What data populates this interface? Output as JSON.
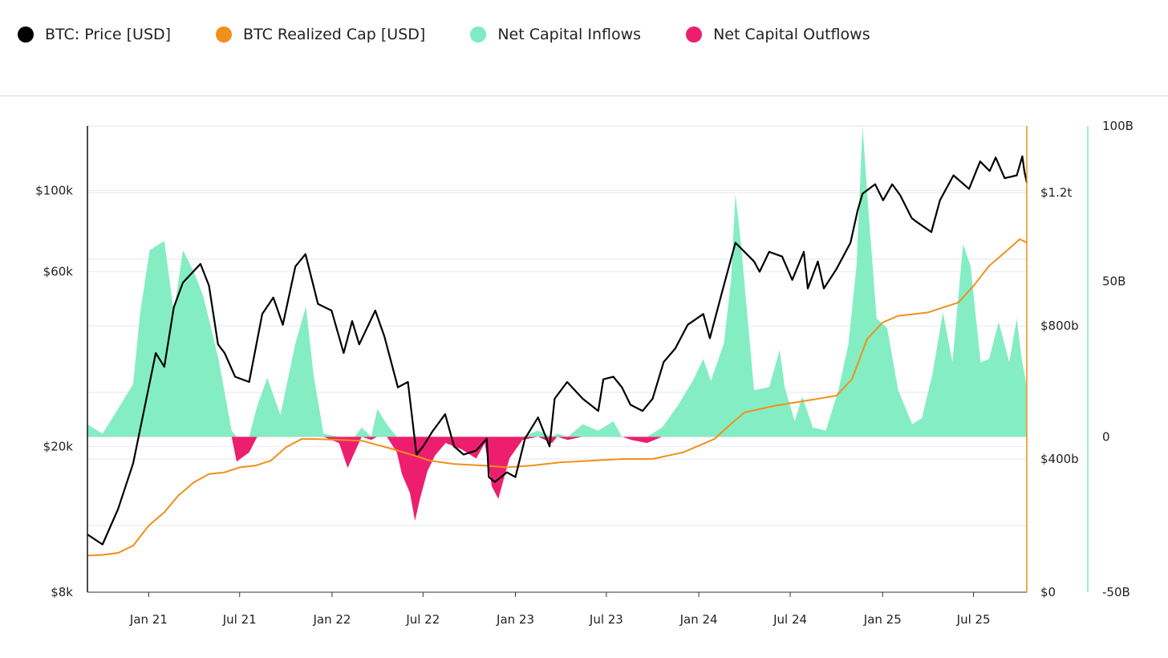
{
  "legend": [
    {
      "label": "BTC: Price [USD]",
      "color": "#000000"
    },
    {
      "label": "BTC Realized Cap [USD]",
      "color": "#f0901a"
    },
    {
      "label": "Net Capital Inflows",
      "color": "#7eecc0"
    },
    {
      "label": "Net Capital Outflows",
      "color": "#ee1e6e"
    }
  ],
  "chart_data": {
    "type": "line",
    "x_range": [
      "2020-09-01",
      "2025-10-15"
    ],
    "x_ticks": [
      "Jan 21",
      "Jul 21",
      "Jan 22",
      "Jul 22",
      "Jan 23",
      "Jul 23",
      "Jan 24",
      "Jul 24",
      "Jan 25",
      "Jul 25"
    ],
    "y_left": {
      "scale": "log",
      "range": [
        8000,
        150000
      ],
      "ticks": [
        "$8k",
        "$20k",
        "$60k",
        "$100k"
      ],
      "tick_values": [
        8000,
        20000,
        60000,
        100000
      ]
    },
    "y_right_1": {
      "range": [
        0,
        1400000000000
      ],
      "ticks": [
        "$0",
        "$400b",
        "$800b",
        "$1.2t"
      ],
      "tick_values": [
        0,
        400000000000,
        800000000000,
        1200000000000
      ]
    },
    "y_right_2": {
      "range": [
        -50000000000,
        100000000000
      ],
      "ticks": [
        "-50B",
        "0",
        "50B",
        "100B"
      ],
      "tick_values": [
        -50000000000,
        0,
        50000000000,
        100000000000
      ]
    },
    "series": [
      {
        "name": "BTC: Price [USD]",
        "axis": "left",
        "color": "#000000",
        "x": [
          "2020-09-01",
          "2020-10-01",
          "2020-11-01",
          "2020-12-01",
          "2021-01-01",
          "2021-01-15",
          "2021-02-01",
          "2021-02-20",
          "2021-03-10",
          "2021-04-14",
          "2021-05-01",
          "2021-05-19",
          "2021-06-01",
          "2021-06-22",
          "2021-07-20",
          "2021-08-15",
          "2021-09-06",
          "2021-09-25",
          "2021-10-20",
          "2021-11-09",
          "2021-12-04",
          "2021-12-31",
          "2022-01-24",
          "2022-02-10",
          "2022-02-24",
          "2022-03-28",
          "2022-04-15",
          "2022-05-12",
          "2022-06-01",
          "2022-06-18",
          "2022-07-01",
          "2022-07-20",
          "2022-08-14",
          "2022-09-01",
          "2022-09-20",
          "2022-10-15",
          "2022-11-05",
          "2022-11-09",
          "2022-11-21",
          "2022-12-15",
          "2023-01-01",
          "2023-01-20",
          "2023-02-15",
          "2023-03-10",
          "2023-03-20",
          "2023-04-14",
          "2023-05-15",
          "2023-06-15",
          "2023-06-25",
          "2023-07-15",
          "2023-08-01",
          "2023-08-18",
          "2023-09-11",
          "2023-10-01",
          "2023-10-23",
          "2023-11-15",
          "2023-12-10",
          "2024-01-10",
          "2024-01-23",
          "2024-02-15",
          "2024-03-01",
          "2024-03-14",
          "2024-04-01",
          "2024-04-20",
          "2024-05-01",
          "2024-05-20",
          "2024-06-15",
          "2024-07-05",
          "2024-07-28",
          "2024-08-05",
          "2024-08-25",
          "2024-09-06",
          "2024-10-01",
          "2024-10-29",
          "2024-11-12",
          "2024-11-22",
          "2024-12-17",
          "2025-01-02",
          "2025-01-20",
          "2025-02-05",
          "2025-02-28",
          "2025-03-10",
          "2025-04-08",
          "2025-04-25",
          "2025-05-22",
          "2025-06-22",
          "2025-07-14",
          "2025-08-02",
          "2025-08-14",
          "2025-09-01",
          "2025-09-25",
          "2025-10-06",
          "2025-10-10",
          "2025-10-15"
        ],
        "y": [
          11500,
          10800,
          13500,
          18000,
          29000,
          36000,
          33000,
          48000,
          56000,
          63000,
          55000,
          38000,
          36000,
          31000,
          30000,
          46000,
          51000,
          43000,
          62000,
          67000,
          49000,
          47000,
          36000,
          44000,
          38000,
          47000,
          40000,
          29000,
          30000,
          19000,
          20000,
          22000,
          24500,
          20000,
          19000,
          19500,
          21000,
          16500,
          16000,
          17000,
          16500,
          21000,
          24000,
          20000,
          27000,
          30000,
          27000,
          25000,
          30500,
          31000,
          29000,
          26000,
          25000,
          27000,
          34000,
          37000,
          43000,
          46000,
          39500,
          52000,
          62000,
          72000,
          68000,
          64000,
          60000,
          68000,
          66000,
          57000,
          68000,
          54000,
          64000,
          54000,
          61000,
          72000,
          88000,
          98000,
          104000,
          94000,
          104000,
          97000,
          84000,
          82000,
          77000,
          94000,
          110000,
          101000,
          120000,
          113000,
          123000,
          108000,
          110000,
          124000,
          113000,
          105000
        ],
        "values": [
          11500,
          10800,
          13500,
          18000,
          29000,
          36000,
          33000,
          48000,
          56000,
          63000,
          55000,
          38000,
          36000,
          31000,
          30000,
          46000,
          51000,
          43000,
          62000,
          67000,
          49000,
          47000,
          36000,
          44000,
          38000,
          47000,
          40000,
          29000,
          30000,
          19000,
          20000,
          22000,
          24500,
          20000,
          19000,
          19500,
          21000,
          16500,
          16000,
          17000,
          16500,
          21000,
          24000,
          20000,
          27000,
          30000,
          27000,
          25000,
          30500,
          31000,
          29000,
          26000,
          25000,
          27000,
          34000,
          37000,
          43000,
          46000,
          39500,
          52000,
          62000,
          72000,
          68000,
          64000,
          60000,
          68000,
          66000,
          57000,
          68000,
          54000,
          64000,
          54000,
          61000,
          72000,
          88000,
          98000,
          104000,
          94000,
          104000,
          97000,
          84000,
          82000,
          77000,
          94000,
          110000,
          101000,
          120000,
          113000,
          123000,
          108000,
          110000,
          124000,
          113000,
          105000
        ]
      },
      {
        "name": "BTC Realized Cap [USD]",
        "axis": "right_1",
        "color": "#f0901a",
        "x": [
          "2020-09-01",
          "2020-10-01",
          "2020-11-01",
          "2020-12-01",
          "2021-01-01",
          "2021-02-01",
          "2021-03-01",
          "2021-04-01",
          "2021-05-01",
          "2021-06-01",
          "2021-07-01",
          "2021-08-01",
          "2021-09-01",
          "2021-10-01",
          "2021-11-01",
          "2021-12-01",
          "2022-01-01",
          "2022-03-01",
          "2022-05-01",
          "2022-06-15",
          "2022-07-15",
          "2022-09-01",
          "2022-11-01",
          "2022-12-15",
          "2023-02-01",
          "2023-04-01",
          "2023-06-01",
          "2023-08-01",
          "2023-10-01",
          "2023-12-01",
          "2024-01-01",
          "2024-02-01",
          "2024-03-01",
          "2024-04-01",
          "2024-06-01",
          "2024-08-01",
          "2024-10-01",
          "2024-11-01",
          "2024-12-01",
          "2025-01-01",
          "2025-02-01",
          "2025-04-01",
          "2025-06-01",
          "2025-07-01",
          "2025-08-01",
          "2025-09-01",
          "2025-10-01",
          "2025-10-15"
        ],
        "y": [
          110000000000,
          112000000000,
          118000000000,
          140000000000,
          200000000000,
          240000000000,
          290000000000,
          330000000000,
          355000000000,
          360000000000,
          375000000000,
          380000000000,
          395000000000,
          435000000000,
          460000000000,
          460000000000,
          458000000000,
          455000000000,
          430000000000,
          410000000000,
          395000000000,
          385000000000,
          380000000000,
          375000000000,
          380000000000,
          390000000000,
          395000000000,
          400000000000,
          400000000000,
          420000000000,
          440000000000,
          460000000000,
          500000000000,
          540000000000,
          560000000000,
          575000000000,
          590000000000,
          640000000000,
          760000000000,
          810000000000,
          830000000000,
          840000000000,
          870000000000,
          920000000000,
          980000000000,
          1020000000000,
          1060000000000,
          1050000000000
        ],
        "values": [
          110000000000,
          112000000000,
          118000000000,
          140000000000,
          200000000000,
          240000000000,
          290000000000,
          330000000000,
          355000000000,
          360000000000,
          375000000000,
          380000000000,
          395000000000,
          435000000000,
          460000000000,
          460000000000,
          458000000000,
          455000000000,
          430000000000,
          410000000000,
          395000000000,
          385000000000,
          380000000000,
          375000000000,
          380000000000,
          390000000000,
          395000000000,
          400000000000,
          400000000000,
          420000000000,
          440000000000,
          460000000000,
          500000000000,
          540000000000,
          560000000000,
          575000000000,
          590000000000,
          640000000000,
          760000000000,
          810000000000,
          830000000000,
          840000000000,
          870000000000,
          920000000000,
          980000000000,
          1020000000000,
          1060000000000,
          1050000000000
        ]
      },
      {
        "name": "Net Capital Inflows / Outflows",
        "axis": "right_2",
        "type": "area",
        "x": [
          "2020-09-01",
          "2020-10-01",
          "2020-11-01",
          "2020-12-01",
          "2020-12-15",
          "2021-01-03",
          "2021-02-01",
          "2021-02-20",
          "2021-03-10",
          "2021-04-01",
          "2021-04-20",
          "2021-05-20",
          "2021-06-15",
          "2021-06-25",
          "2021-07-20",
          "2021-08-05",
          "2021-08-25",
          "2021-09-20",
          "2021-10-20",
          "2021-11-10",
          "2021-11-25",
          "2021-12-15",
          "2022-01-15",
          "2022-02-01",
          "2022-02-15",
          "2022-03-01",
          "2022-03-20",
          "2022-04-01",
          "2022-04-20",
          "2022-05-10",
          "2022-05-20",
          "2022-06-05",
          "2022-06-15",
          "2022-06-25",
          "2022-07-10",
          "2022-07-25",
          "2022-08-15",
          "2022-09-15",
          "2022-10-15",
          "2022-11-01",
          "2022-11-15",
          "2022-11-28",
          "2022-12-20",
          "2023-01-15",
          "2023-02-15",
          "2023-03-15",
          "2023-03-25",
          "2023-04-15",
          "2023-05-15",
          "2023-06-15",
          "2023-07-15",
          "2023-08-01",
          "2023-08-20",
          "2023-09-20",
          "2023-10-20",
          "2023-11-20",
          "2023-12-20",
          "2024-01-10",
          "2024-01-25",
          "2024-02-20",
          "2024-03-05",
          "2024-03-14",
          "2024-03-25",
          "2024-04-20",
          "2024-05-20",
          "2024-06-10",
          "2024-06-20",
          "2024-07-10",
          "2024-07-25",
          "2024-08-15",
          "2024-09-10",
          "2024-10-05",
          "2024-10-25",
          "2024-11-10",
          "2024-11-22",
          "2024-12-05",
          "2024-12-20",
          "2025-01-10",
          "2025-02-01",
          "2025-03-01",
          "2025-03-20",
          "2025-04-10",
          "2025-05-01",
          "2025-05-20",
          "2025-06-10",
          "2025-06-25",
          "2025-07-15",
          "2025-08-01",
          "2025-08-20",
          "2025-09-10",
          "2025-09-25",
          "2025-10-05",
          "2025-10-15"
        ],
        "y": [
          4000000000,
          1000000000,
          9000000000,
          17000000000,
          40000000000,
          60000000000,
          63000000000,
          40000000000,
          60000000000,
          53000000000,
          45000000000,
          25000000000,
          2000000000,
          -8000000000,
          -5000000000,
          10000000000,
          19000000000,
          7000000000,
          30000000000,
          42000000000,
          20000000000,
          1000000000,
          -2000000000,
          -10000000000,
          -5000000000,
          3000000000,
          -1000000000,
          9000000000,
          4000000000,
          -5000000000,
          -12000000000,
          -18000000000,
          -27000000000,
          -20000000000,
          -11000000000,
          -6000000000,
          -2000000000,
          -4000000000,
          -7000000000,
          -2000000000,
          -16000000000,
          -20000000000,
          -7000000000,
          -1000000000,
          2000000000,
          -2000000000,
          1000000000,
          -1000000000,
          4000000000,
          2000000000,
          5000000000,
          0,
          -1000000000,
          -2000000000,
          3000000000,
          10000000000,
          18000000000,
          25000000000,
          18000000000,
          30000000000,
          50000000000,
          78000000000,
          62000000000,
          15000000000,
          16000000000,
          28000000000,
          16000000000,
          5000000000,
          13000000000,
          3000000000,
          2000000000,
          15000000000,
          30000000000,
          55000000000,
          100000000000,
          70000000000,
          38000000000,
          35000000000,
          15000000000,
          4000000000,
          6000000000,
          20000000000,
          40000000000,
          24000000000,
          62000000000,
          55000000000,
          24000000000,
          25000000000,
          37000000000,
          24000000000,
          38000000000,
          25000000000,
          16000000000
        ],
        "values": [
          4000000000,
          1000000000,
          9000000000,
          17000000000,
          40000000000,
          60000000000,
          63000000000,
          40000000000,
          60000000000,
          53000000000,
          45000000000,
          25000000000,
          2000000000,
          -8000000000,
          -5000000000,
          10000000000,
          19000000000,
          7000000000,
          30000000000,
          42000000000,
          20000000000,
          1000000000,
          -2000000000,
          -10000000000,
          -5000000000,
          3000000000,
          -1000000000,
          9000000000,
          4000000000,
          -5000000000,
          -12000000000,
          -18000000000,
          -27000000000,
          -20000000000,
          -11000000000,
          -6000000000,
          -2000000000,
          -4000000000,
          -7000000000,
          -2000000000,
          -16000000000,
          -20000000000,
          -7000000000,
          -1000000000,
          2000000000,
          -2000000000,
          1000000000,
          -1000000000,
          4000000000,
          2000000000,
          5000000000,
          0,
          -1000000000,
          -2000000000,
          3000000000,
          10000000000,
          18000000000,
          25000000000,
          18000000000,
          30000000000,
          50000000000,
          78000000000,
          62000000000,
          15000000000,
          16000000000,
          28000000000,
          16000000000,
          5000000000,
          13000000000,
          3000000000,
          2000000000,
          15000000000,
          30000000000,
          55000000000,
          100000000000,
          70000000000,
          38000000000,
          35000000000,
          15000000000,
          4000000000,
          6000000000,
          20000000000,
          40000000000,
          24000000000,
          62000000000,
          55000000000,
          24000000000,
          25000000000,
          37000000000,
          24000000000,
          38000000000,
          25000000000,
          16000000000
        ]
      }
    ],
    "colors": {
      "inflow": "#7eecc0",
      "outflow": "#ee1e6e"
    }
  }
}
